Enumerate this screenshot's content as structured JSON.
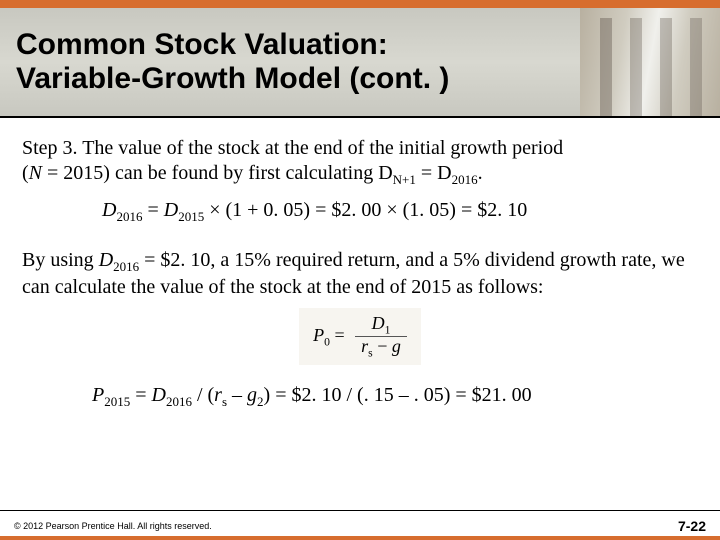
{
  "colors": {
    "accent": "#d76d2e",
    "header_bg": "#cdccc3",
    "text": "#000000",
    "formula_bg": "#f7f5f0"
  },
  "header": {
    "title_line1": "Common Stock Valuation:",
    "title_line2": "Variable-Growth Model (cont. )"
  },
  "body": {
    "p1_a": "Step 3. The value of the stock at the end of the initial growth period",
    "p1_b": "(",
    "p1_N": "N",
    "p1_c": " = 2015) can be found by first calculating D",
    "p1_sub1": "N+1",
    "p1_d": " = D",
    "p1_sub2": "2016",
    "p1_e": ".",
    "eq1_a": "D",
    "eq1_s1": "2016",
    "eq1_b": " = ",
    "eq1_c": "D",
    "eq1_s2": "2015",
    "eq1_d": " × (1 + 0. 05) = $2. 00 × (1. 05) = $2. 10",
    "p2_a": "By using ",
    "p2_b": "D",
    "p2_s1": "2016",
    "p2_c": " = $2. 10, a 15% required return, and a 5% dividend growth rate, we can calculate the value of the stock at the end of 2015 as follows:",
    "formula": {
      "lhs_var": "P",
      "lhs_sub": "0",
      "eq": " = ",
      "num_var": "D",
      "num_sub": "1",
      "den_r": "r",
      "den_rs": "s",
      "den_mid": " − ",
      "den_g": "g"
    },
    "eq2_a": "P",
    "eq2_s1": "2015",
    "eq2_b": " = ",
    "eq2_c": "D",
    "eq2_s2": "2016",
    "eq2_d": " / (",
    "eq2_e": "r",
    "eq2_s3": "s",
    "eq2_f": " – ",
    "eq2_g": "g",
    "eq2_s4": "2",
    "eq2_h": ") = $2. 10 / (. 15 – . 05) = $21. 00"
  },
  "footer": {
    "copyright": "© 2012 Pearson Prentice Hall. All rights reserved.",
    "page": "7-22"
  }
}
